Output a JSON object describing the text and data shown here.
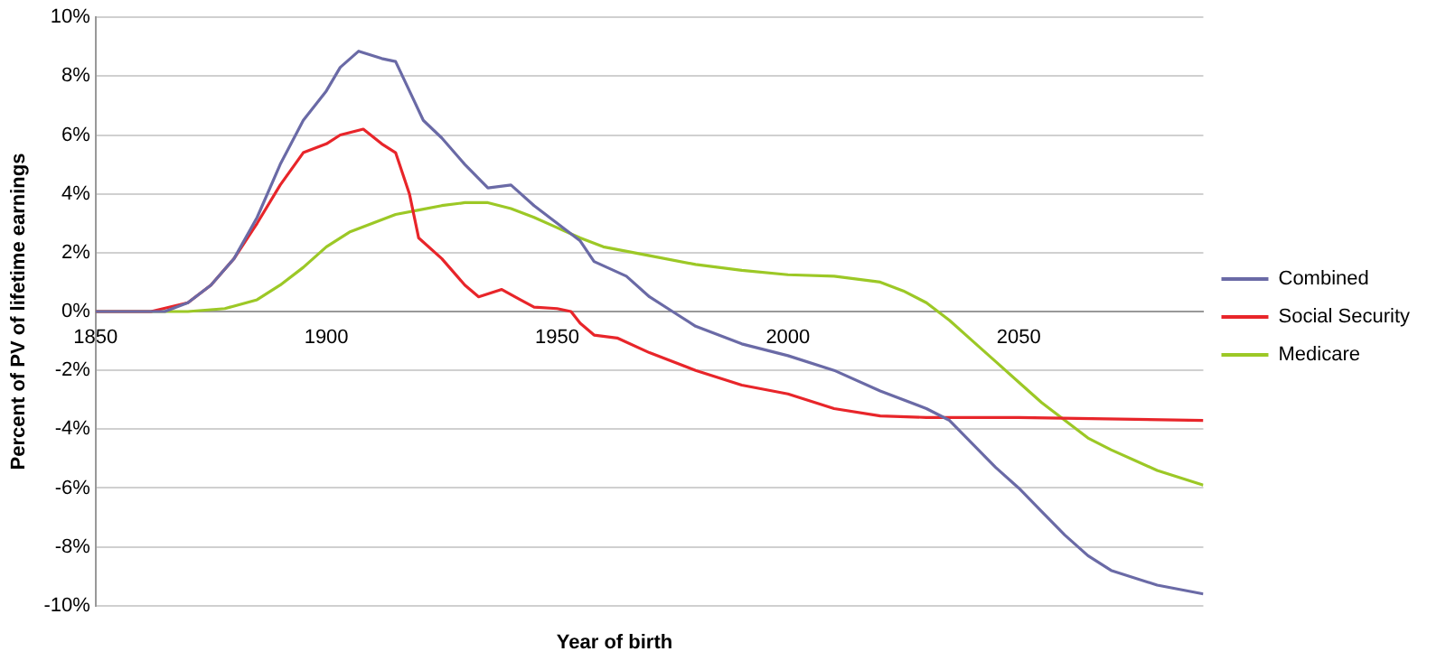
{
  "chart_data": {
    "type": "line",
    "xlabel": "Year of birth",
    "ylabel": "Percent of PV of lifetime earnings",
    "xlim": [
      1850,
      2090
    ],
    "xticks": [
      1850,
      1900,
      1950,
      2000,
      2050
    ],
    "ylim": [
      -10,
      10
    ],
    "yticks": [
      {
        "value": -10,
        "label": "-10%"
      },
      {
        "value": -8,
        "label": "-8%"
      },
      {
        "value": -6,
        "label": "-6%"
      },
      {
        "value": -4,
        "label": "-4%"
      },
      {
        "value": -2,
        "label": "-2%"
      },
      {
        "value": 0,
        "label": "0%"
      },
      {
        "value": 2,
        "label": "2%"
      },
      {
        "value": 4,
        "label": "4%"
      },
      {
        "value": 6,
        "label": "6%"
      },
      {
        "value": 8,
        "label": "8%"
      },
      {
        "value": 10,
        "label": "10%"
      }
    ],
    "grid": "y",
    "legend": "right",
    "marker": "none",
    "line_style": "solid",
    "series": [
      {
        "name": "Combined",
        "color": "#6a6aa6",
        "x": [
          1850,
          1865,
          1870,
          1875,
          1880,
          1885,
          1890,
          1895,
          1900,
          1903,
          1907,
          1912,
          1915,
          1918,
          1921,
          1925,
          1930,
          1935,
          1940,
          1945,
          1950,
          1955,
          1958,
          1965,
          1970,
          1975,
          1980,
          1990,
          2000,
          2010,
          2020,
          2030,
          2035,
          2040,
          2045,
          2050,
          2055,
          2060,
          2065,
          2070,
          2080,
          2090
        ],
        "values": [
          0,
          0,
          0.3,
          0.9,
          1.8,
          3.2,
          5,
          6.5,
          7.5,
          8.3,
          8.85,
          8.6,
          8.5,
          7.5,
          6.5,
          5.9,
          5,
          4.2,
          4.3,
          3.6,
          3,
          2.4,
          1.7,
          1.2,
          0.5,
          0,
          -0.5,
          -1.1,
          -1.5,
          -2,
          -2.7,
          -3.3,
          -3.7,
          -4.5,
          -5.3,
          -6,
          -6.8,
          -7.6,
          -8.3,
          -8.8,
          -9.3,
          -9.6
        ]
      },
      {
        "name": "Social Security",
        "color": "#e8252a",
        "x": [
          1850,
          1862,
          1870,
          1875,
          1880,
          1885,
          1890,
          1895,
          1900,
          1903,
          1908,
          1912,
          1915,
          1918,
          1920,
          1925,
          1930,
          1933,
          1938,
          1942,
          1945,
          1950,
          1953,
          1955,
          1958,
          1963,
          1970,
          1980,
          1990,
          2000,
          2010,
          2020,
          2030,
          2050,
          2090
        ],
        "values": [
          0,
          0,
          0.3,
          0.9,
          1.8,
          3,
          4.3,
          5.4,
          5.7,
          6,
          6.2,
          5.7,
          5.4,
          4,
          2.5,
          1.8,
          0.9,
          0.5,
          0.75,
          0.4,
          0.15,
          0.1,
          0,
          -0.4,
          -0.8,
          -0.9,
          -1.4,
          -2,
          -2.5,
          -2.8,
          -3.3,
          -3.55,
          -3.6,
          -3.6,
          -3.7
        ]
      },
      {
        "name": "Medicare",
        "color": "#9cc826",
        "x": [
          1850,
          1870,
          1878,
          1885,
          1890,
          1895,
          1900,
          1905,
          1910,
          1915,
          1920,
          1925,
          1930,
          1935,
          1940,
          1945,
          1950,
          1955,
          1960,
          1970,
          1980,
          1990,
          2000,
          2010,
          2020,
          2025,
          2030,
          2035,
          2040,
          2045,
          2050,
          2055,
          2060,
          2065,
          2070,
          2080,
          2090
        ],
        "values": [
          0,
          0,
          0.1,
          0.4,
          0.9,
          1.5,
          2.2,
          2.7,
          3,
          3.3,
          3.45,
          3.6,
          3.7,
          3.7,
          3.5,
          3.2,
          2.85,
          2.5,
          2.2,
          1.9,
          1.6,
          1.4,
          1.25,
          1.2,
          1,
          0.7,
          0.3,
          -0.3,
          -1,
          -1.7,
          -2.4,
          -3.1,
          -3.7,
          -4.3,
          -4.7,
          -5.4,
          -5.9
        ]
      }
    ]
  }
}
